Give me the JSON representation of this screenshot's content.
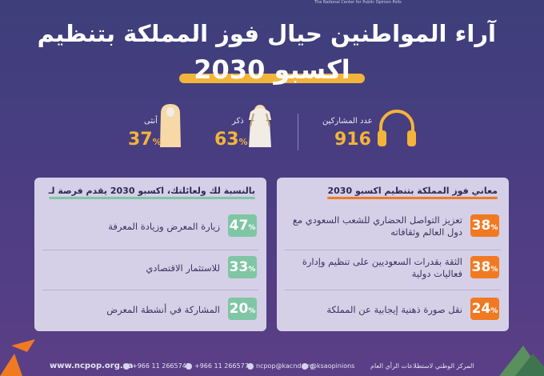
{
  "header": {
    "logo_ar": "",
    "logo_en": "The National Center for Public Opinion Polls",
    "title_line1": "آراء المواطنين حيال فوز المملكة بتنظيم",
    "title_line2": "اكسبو 2030"
  },
  "stats": {
    "participants_label": "عدد المشاركين",
    "participants_value": "916",
    "male_label": "ذكر",
    "male_value": "63",
    "female_label": "أنثى",
    "female_value": "37",
    "percent_sign": "%"
  },
  "panel_right": {
    "title": "معاني فوز المملكة بتنظيم اكسبو 2030",
    "accent": "#f07a22",
    "items": [
      {
        "value": "38",
        "text": "تعزيز التواصل الحضاري للشعب السعودي مع دول العالم وثقافاته"
      },
      {
        "value": "38",
        "text": "الثقة بقدرات السعوديين على تنظيم وإدارة فعاليات دولية"
      },
      {
        "value": "24",
        "text": "نقل صورة ذهنية إيجابية عن المملكة"
      }
    ]
  },
  "panel_left": {
    "title": "بالنسبة لك ولعائلتك، اكسبو 2030 يقدم فرصة لـ",
    "accent": "#7fc6a4",
    "items": [
      {
        "value": "47",
        "text": "زيارة المعرض وزيادة المعرفة"
      },
      {
        "value": "33",
        "text": "للاستثمار الاقتصادي"
      },
      {
        "value": "20",
        "text": "المشاركة في أنشطة المعرض"
      }
    ]
  },
  "footer": {
    "website": "www.ncpop.org.sa",
    "phone1": "+966 11 2665747",
    "phone2": "+966 11 2665778",
    "email": "ncpop@kacnd.org",
    "social": "@ksaopinions",
    "center_name": "المركز الوطني لاستطلاعات الرأي العام"
  }
}
